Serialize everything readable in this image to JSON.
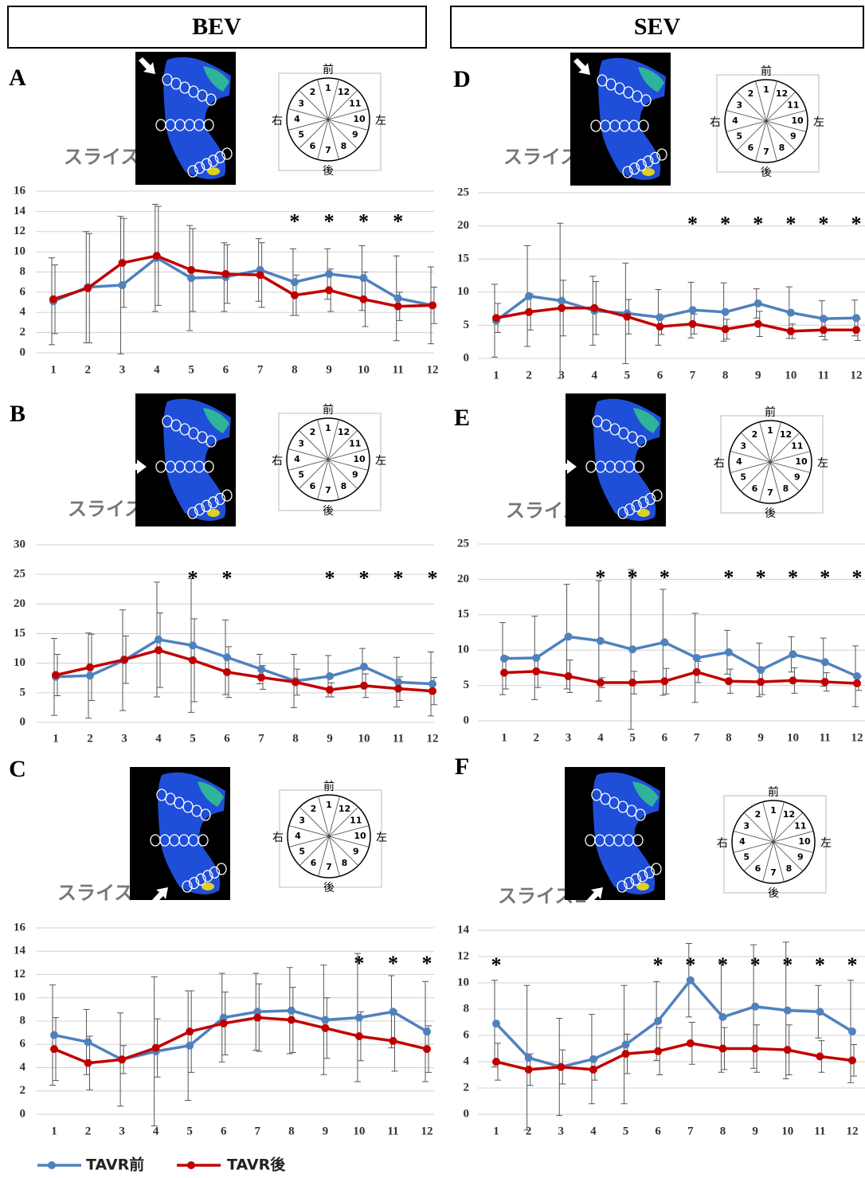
{
  "column_headers": [
    "BEV",
    "SEV"
  ],
  "orientation_diagram": {
    "front": "前",
    "back": "後",
    "right": "右",
    "left": "左",
    "sectors": [
      "1",
      "2",
      "3",
      "4",
      "5",
      "6",
      "7",
      "8",
      "9",
      "10",
      "11",
      "12"
    ]
  },
  "chart_data": [
    {
      "type": "line",
      "panel": "A",
      "subtitle": "スライス3",
      "categories": [
        "1",
        "2",
        "3",
        "4",
        "5",
        "6",
        "7",
        "8",
        "9",
        "10",
        "11",
        "12"
      ],
      "ylim": [
        0,
        16
      ],
      "yticks": [
        0,
        2,
        4,
        6,
        8,
        10,
        12,
        14,
        16
      ],
      "grid": true,
      "series": [
        {
          "name": "TAVR前",
          "color": "#4f81bd",
          "values": [
            5.1,
            6.5,
            6.7,
            9.4,
            7.4,
            7.5,
            8.2,
            7.0,
            7.8,
            7.4,
            5.4,
            4.7
          ],
          "errors": [
            4.3,
            5.5,
            6.8,
            5.3,
            5.2,
            3.4,
            3.1,
            3.3,
            2.5,
            3.2,
            4.2,
            3.8
          ]
        },
        {
          "name": "TAVR後",
          "color": "#c00000",
          "values": [
            5.3,
            6.4,
            8.9,
            9.6,
            8.2,
            7.8,
            7.7,
            5.7,
            6.2,
            5.3,
            4.6,
            4.7
          ],
          "errors": [
            3.4,
            5.4,
            4.4,
            4.9,
            4.1,
            2.9,
            3.2,
            2.0,
            2.1,
            2.7,
            1.4,
            1.8
          ]
        }
      ],
      "significance": [
        null,
        null,
        null,
        null,
        null,
        null,
        null,
        "*",
        "*",
        "*",
        "*",
        null
      ]
    },
    {
      "type": "line",
      "panel": "B",
      "subtitle": "スライス2",
      "categories": [
        "1",
        "2",
        "3",
        "4",
        "5",
        "6",
        "7",
        "8",
        "9",
        "10",
        "11",
        "12"
      ],
      "ylim": [
        0,
        30
      ],
      "yticks": [
        0,
        5,
        10,
        15,
        20,
        25,
        30
      ],
      "grid": true,
      "series": [
        {
          "name": "TAVR前",
          "color": "#4f81bd",
          "values": [
            7.7,
            7.9,
            10.5,
            14.0,
            13.0,
            11.0,
            9.0,
            7.0,
            7.8,
            9.4,
            6.8,
            6.5
          ],
          "errors": [
            6.5,
            7.2,
            8.5,
            9.7,
            11.3,
            6.3,
            2.5,
            4.5,
            3.5,
            3.1,
            4.2,
            5.4
          ]
        },
        {
          "name": "TAVR後",
          "color": "#c00000",
          "values": [
            8.0,
            9.3,
            10.6,
            12.2,
            10.5,
            8.5,
            7.6,
            6.8,
            5.5,
            6.2,
            5.7,
            5.3
          ],
          "errors": [
            3.5,
            5.6,
            4.0,
            6.3,
            7.0,
            4.3,
            2.0,
            2.2,
            1.2,
            2.0,
            2.0,
            2.3
          ]
        }
      ],
      "significance": [
        null,
        null,
        null,
        null,
        "*",
        "*",
        null,
        null,
        "*",
        "*",
        "*",
        "*"
      ]
    },
    {
      "type": "line",
      "panel": "C",
      "subtitle": "スライス1",
      "categories": [
        "1",
        "2",
        "3",
        "4",
        "5",
        "6",
        "7",
        "8",
        "9",
        "10",
        "11",
        "12"
      ],
      "ylim": [
        0,
        16
      ],
      "yticks": [
        0,
        2,
        4,
        6,
        8,
        10,
        12,
        14,
        16
      ],
      "grid": true,
      "series": [
        {
          "name": "TAVR前",
          "color": "#4f81bd",
          "values": [
            6.8,
            6.2,
            4.7,
            5.4,
            5.9,
            8.3,
            8.8,
            8.9,
            8.1,
            8.3,
            8.8,
            7.1
          ],
          "errors": [
            4.3,
            2.8,
            4.0,
            6.4,
            4.7,
            3.8,
            3.3,
            3.7,
            4.7,
            5.5,
            3.1,
            4.3
          ]
        },
        {
          "name": "TAVR後",
          "color": "#c00000",
          "values": [
            5.6,
            4.4,
            4.7,
            5.7,
            7.1,
            7.8,
            8.3,
            8.1,
            7.4,
            6.7,
            6.3,
            5.6
          ],
          "errors": [
            2.7,
            2.3,
            1.2,
            2.5,
            3.5,
            2.7,
            2.9,
            2.8,
            2.6,
            2.1,
            2.6,
            2.0
          ]
        }
      ],
      "significance": [
        null,
        null,
        null,
        null,
        null,
        null,
        null,
        null,
        null,
        "*",
        "*",
        "*"
      ]
    },
    {
      "type": "line",
      "panel": "D",
      "subtitle": "スライス3",
      "categories": [
        "1",
        "2",
        "3",
        "4",
        "5",
        "6",
        "7",
        "8",
        "9",
        "10",
        "11",
        "12"
      ],
      "ylim": [
        0,
        25
      ],
      "yticks": [
        0,
        5,
        10,
        15,
        20,
        25
      ],
      "grid": true,
      "series": [
        {
          "name": "TAVR前",
          "color": "#4f81bd",
          "values": [
            5.7,
            9.4,
            8.7,
            7.2,
            6.8,
            6.2,
            7.3,
            7.0,
            8.3,
            6.9,
            6.0,
            6.1
          ],
          "errors": [
            5.5,
            7.6,
            11.7,
            5.2,
            7.6,
            4.2,
            4.2,
            4.4,
            2.2,
            3.9,
            2.7,
            2.7
          ]
        },
        {
          "name": "TAVR後",
          "color": "#c00000",
          "values": [
            6.1,
            7.0,
            7.6,
            7.6,
            6.3,
            4.8,
            5.2,
            4.4,
            5.2,
            4.1,
            4.3,
            4.3
          ],
          "errors": [
            2.2,
            2.7,
            4.2,
            4.0,
            2.6,
            1.2,
            1.5,
            1.5,
            1.9,
            1.1,
            1.5,
            1.6
          ]
        }
      ],
      "significance": [
        null,
        null,
        null,
        null,
        null,
        null,
        "*",
        "*",
        "*",
        "*",
        "*",
        "*"
      ]
    },
    {
      "type": "line",
      "panel": "E",
      "subtitle": "スライス2",
      "categories": [
        "1",
        "2",
        "3",
        "4",
        "5",
        "6",
        "7",
        "8",
        "9",
        "10",
        "11",
        "12"
      ],
      "ylim": [
        0,
        25
      ],
      "yticks": [
        0,
        5,
        10,
        15,
        20,
        25
      ],
      "grid": true,
      "series": [
        {
          "name": "TAVR前",
          "color": "#4f81bd",
          "values": [
            8.8,
            8.9,
            11.9,
            11.3,
            10.1,
            11.1,
            8.9,
            9.7,
            7.2,
            9.4,
            8.3,
            6.3
          ],
          "errors": [
            5.1,
            5.9,
            7.4,
            8.5,
            11.3,
            7.5,
            6.3,
            3.1,
            3.8,
            2.5,
            3.4,
            4.3
          ]
        },
        {
          "name": "TAVR後",
          "color": "#c00000",
          "values": [
            6.8,
            7.0,
            6.3,
            5.4,
            5.4,
            5.6,
            6.9,
            5.6,
            5.5,
            5.7,
            5.5,
            5.3
          ],
          "errors": [
            2.3,
            2.3,
            2.3,
            0.7,
            1.6,
            1.8,
            1.5,
            1.7,
            1.8,
            1.8,
            1.3,
            1.0
          ]
        }
      ],
      "significance": [
        null,
        null,
        null,
        "*",
        "*",
        "*",
        null,
        "*",
        "*",
        "*",
        "*",
        "*"
      ]
    },
    {
      "type": "line",
      "panel": "F",
      "subtitle": "スライス1",
      "categories": [
        "1",
        "2",
        "3",
        "4",
        "5",
        "6",
        "7",
        "8",
        "9",
        "10",
        "11",
        "12"
      ],
      "ylim": [
        0,
        14
      ],
      "yticks": [
        0,
        2,
        4,
        6,
        8,
        10,
        12,
        14
      ],
      "grid": true,
      "series": [
        {
          "name": "TAVR前",
          "color": "#4f81bd",
          "values": [
            6.9,
            4.3,
            3.6,
            4.2,
            5.3,
            7.1,
            10.2,
            7.4,
            8.2,
            7.9,
            7.8,
            6.3
          ],
          "errors": [
            3.3,
            5.5,
            3.7,
            3.4,
            4.5,
            3.0,
            2.8,
            4.2,
            4.7,
            5.2,
            2.0,
            3.9
          ]
        },
        {
          "name": "TAVR後",
          "color": "#c00000",
          "values": [
            4.0,
            3.4,
            3.6,
            3.4,
            4.6,
            4.8,
            5.4,
            5.0,
            5.0,
            4.9,
            4.4,
            4.1
          ],
          "errors": [
            1.4,
            1.2,
            1.3,
            0.8,
            1.5,
            1.8,
            1.6,
            1.6,
            1.8,
            1.9,
            1.2,
            1.2
          ]
        }
      ],
      "significance": [
        "*",
        null,
        null,
        null,
        null,
        "*",
        "*",
        "*",
        "*",
        "*",
        "*",
        "*"
      ]
    }
  ]
}
